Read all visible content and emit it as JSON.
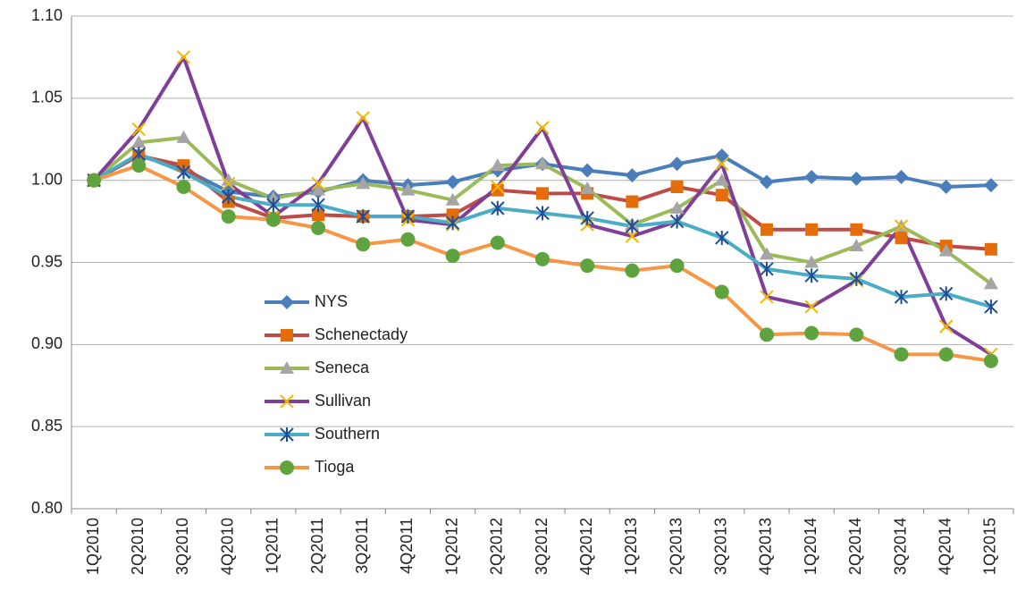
{
  "chart_data": {
    "type": "line",
    "categories": [
      "1Q2010",
      "2Q2010",
      "3Q2010",
      "4Q2010",
      "1Q2011",
      "2Q2011",
      "3Q2011",
      "4Q2011",
      "1Q2012",
      "2Q2012",
      "3Q2012",
      "4Q2012",
      "1Q2013",
      "2Q2013",
      "3Q2013",
      "4Q2013",
      "1Q2014",
      "2Q2014",
      "3Q2014",
      "4Q2014",
      "1Q2015"
    ],
    "ylim": [
      0.8,
      1.1
    ],
    "yticks": [
      {
        "value": 0.8,
        "label": "0.80"
      },
      0.85,
      {
        "value": 0.9,
        "label": "0.90"
      },
      0.95,
      {
        "value": 1.0,
        "label": "1.00"
      },
      1.05,
      {
        "value": 1.1,
        "label": "1.10"
      }
    ],
    "grid": true,
    "series": [
      {
        "name": "NYS",
        "color": "#4a7ebb",
        "marker_color": "#4a7ebb",
        "marker": "diamond",
        "values": [
          1.0,
          1.015,
          1.007,
          0.993,
          0.99,
          0.993,
          1.0,
          0.997,
          0.999,
          1.006,
          1.01,
          1.006,
          1.003,
          1.01,
          1.015,
          0.999,
          1.002,
          1.001,
          1.002,
          0.996,
          0.997
        ]
      },
      {
        "name": "Schenectady",
        "color": "#be4b48",
        "marker_color": "#e46c0a",
        "marker": "square",
        "values": [
          1.0,
          1.015,
          1.009,
          0.987,
          0.977,
          0.979,
          0.978,
          0.978,
          0.979,
          0.994,
          0.992,
          0.992,
          0.987,
          0.996,
          0.991,
          0.97,
          0.97,
          0.97,
          0.965,
          0.96,
          0.958
        ]
      },
      {
        "name": "Seneca",
        "color": "#9bbb59",
        "marker_color": "#a5a5a5",
        "marker": "triangle",
        "values": [
          1.0,
          1.023,
          1.026,
          1.0,
          0.989,
          0.994,
          0.998,
          0.994,
          0.988,
          1.009,
          1.01,
          0.995,
          0.973,
          0.983,
          1.0,
          0.955,
          0.95,
          0.96,
          0.972,
          0.957,
          0.937
        ]
      },
      {
        "name": "Sullivan",
        "color": "#7f3f98",
        "marker_color": "#f2b900",
        "marker": "x",
        "values": [
          1.0,
          1.031,
          1.075,
          0.998,
          0.978,
          0.998,
          1.038,
          0.976,
          0.973,
          0.996,
          1.032,
          0.973,
          0.966,
          0.975,
          1.01,
          0.929,
          0.923,
          0.939,
          0.972,
          0.911,
          0.894
        ]
      },
      {
        "name": "Southern",
        "color": "#4bacc6",
        "marker_color": "#1f4e99",
        "marker": "star",
        "values": [
          1.0,
          1.016,
          1.005,
          0.99,
          0.985,
          0.985,
          0.978,
          0.978,
          0.974,
          0.983,
          0.98,
          0.977,
          0.972,
          0.975,
          0.965,
          0.946,
          0.942,
          0.94,
          0.929,
          0.931,
          0.923
        ]
      },
      {
        "name": "Tioga",
        "color": "#f79646",
        "marker_color": "#5fa33e",
        "marker": "circle",
        "values": [
          1.0,
          1.009,
          0.996,
          0.978,
          0.976,
          0.971,
          0.961,
          0.964,
          0.954,
          0.962,
          0.952,
          0.948,
          0.945,
          0.948,
          0.932,
          0.906,
          0.907,
          0.906,
          0.894,
          0.894,
          0.89
        ]
      }
    ]
  }
}
